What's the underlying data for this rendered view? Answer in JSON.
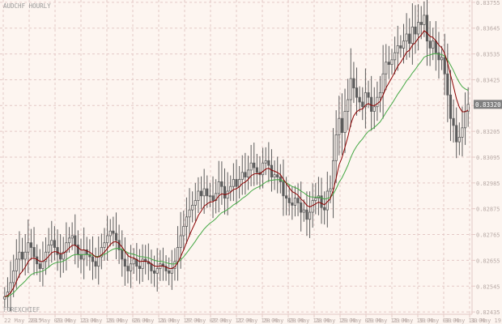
{
  "chart_title": "AUDCHF HOURLY",
  "watermark": "FOREXCHIEF",
  "current_price_label": "0.83320",
  "colors": {
    "background": "#fdf5f0",
    "grid": "#e4c9c6",
    "candle": "#5c5c5c",
    "ma_fast": "#8b0000",
    "ma_slow": "#44a844",
    "axis_text": "#b8aaa6",
    "price_box": "#808080"
  },
  "chart_data": {
    "type": "candlestick",
    "title": "AUDCHF HOURLY",
    "y_ticks": [
      "0.83755",
      "0.83645",
      "0.83535",
      "0.83425",
      "0.83315",
      "0.83205",
      "0.83095",
      "0.82985",
      "0.82875",
      "0.82765",
      "0.82655",
      "0.82545",
      "0.82435"
    ],
    "y_tick_values": [
      0.83755,
      0.83645,
      0.83535,
      0.83425,
      0.83315,
      0.83205,
      0.83095,
      0.82985,
      0.82875,
      0.82765,
      0.82655,
      0.82545,
      0.82435
    ],
    "ylim": [
      0.82425,
      0.83765
    ],
    "x_ticks": [
      "22 May 2015",
      "23 May 03:00",
      "23 May 11:00",
      "23 May 19:00",
      "26 May 03:00",
      "26 May 11:00",
      "26 May 19:00",
      "27 May 03:00",
      "27 May 11:00",
      "27 May 19:00",
      "28 May 03:00",
      "28 May 11:00",
      "28 May 19:00",
      "29 May 03:00",
      "29 May 11:00",
      "29 May 19:00",
      "30 May 03:00",
      "30 May 11:00",
      "30 May 19:00"
    ],
    "x_tick_labels": [
      "22 May 2015",
      "23 May 03:00",
      "23 May 11:00",
      "23 May 19:00",
      "26 May 03:00",
      "26 May 11:00",
      "26 May 19:00",
      "27 May 03:00",
      "27 May 11:00",
      "27 May 19:00",
      "28 May 03:00",
      "28 May 11:00",
      "28 May 19:00",
      "29 May 03:00",
      "29 May 11:00",
      "29 May 19:00",
      "30 May 03:00",
      "30 May 11:00",
      "30 May 19:00"
    ],
    "close": [
      0.825,
      0.8252,
      0.8256,
      0.8261,
      0.8266,
      0.8269,
      0.8266,
      0.8269,
      0.8273,
      0.8271,
      0.8267,
      0.8264,
      0.8262,
      0.8265,
      0.8269,
      0.8272,
      0.8274,
      0.8271,
      0.8268,
      0.8266,
      0.8269,
      0.8273,
      0.8275,
      0.8276,
      0.8272,
      0.8268,
      0.8266,
      0.827,
      0.8268,
      0.8267,
      0.8265,
      0.8263,
      0.8267,
      0.8271,
      0.8273,
      0.8276,
      0.8278,
      0.8277,
      0.8274,
      0.827,
      0.8266,
      0.8263,
      0.8261,
      0.8264,
      0.8266,
      0.8263,
      0.8262,
      0.8266,
      0.8265,
      0.8264,
      0.8261,
      0.826,
      0.8262,
      0.8264,
      0.8263,
      0.8261,
      0.826,
      0.8262,
      0.8265,
      0.8271,
      0.8276,
      0.828,
      0.8284,
      0.8287,
      0.8289,
      0.8291,
      0.8295,
      0.8293,
      0.8296,
      0.8293,
      0.8293,
      0.8291,
      0.8294,
      0.8299,
      0.8297,
      0.8292,
      0.8295,
      0.8297,
      0.83,
      0.8297,
      0.83,
      0.8303,
      0.8301,
      0.8304,
      0.8307,
      0.8305,
      0.8303,
      0.8302,
      0.8307,
      0.8308,
      0.8306,
      0.8301,
      0.8302,
      0.8301,
      0.8299,
      0.8293,
      0.8292,
      0.829,
      0.8289,
      0.8292,
      0.829,
      0.8286,
      0.8287,
      0.8283,
      0.8286,
      0.8291,
      0.8292,
      0.8293,
      0.8288,
      0.8287,
      0.8295,
      0.8296,
      0.8308,
      0.8319,
      0.8326,
      0.832,
      0.8329,
      0.8334,
      0.8343,
      0.8339,
      0.8335,
      0.8333,
      0.8331,
      0.8337,
      0.8335,
      0.8329,
      0.8331,
      0.8335,
      0.8337,
      0.8345,
      0.835,
      0.8349,
      0.8351,
      0.8354,
      0.8357,
      0.8356,
      0.8359,
      0.8362,
      0.8358,
      0.8365,
      0.8362,
      0.8367,
      0.8366,
      0.837,
      0.8359,
      0.8356,
      0.8359,
      0.8354,
      0.8351,
      0.8352,
      0.8345,
      0.8336,
      0.8326,
      0.8323,
      0.8316,
      0.8318,
      0.8322,
      0.8329,
      0.8332
    ],
    "open": [
      0.8249,
      0.825,
      0.8252,
      0.8256,
      0.8261,
      0.8266,
      0.8269,
      0.8266,
      0.8269,
      0.8273,
      0.8271,
      0.8267,
      0.8264,
      0.8262,
      0.8265,
      0.8269,
      0.8272,
      0.8274,
      0.8271,
      0.8268,
      0.8266,
      0.8269,
      0.8273,
      0.8275,
      0.8276,
      0.8272,
      0.8268,
      0.8266,
      0.827,
      0.8268,
      0.8267,
      0.8265,
      0.8263,
      0.8267,
      0.8271,
      0.8273,
      0.8276,
      0.8278,
      0.8277,
      0.8274,
      0.827,
      0.8266,
      0.8263,
      0.8261,
      0.8264,
      0.8266,
      0.8263,
      0.8262,
      0.8266,
      0.8265,
      0.8264,
      0.8261,
      0.826,
      0.8262,
      0.8264,
      0.8263,
      0.8261,
      0.826,
      0.8262,
      0.8265,
      0.8271,
      0.8276,
      0.828,
      0.8284,
      0.8287,
      0.8289,
      0.8291,
      0.8295,
      0.8293,
      0.8296,
      0.8293,
      0.8293,
      0.8291,
      0.8294,
      0.8299,
      0.8297,
      0.8292,
      0.8295,
      0.8297,
      0.83,
      0.8297,
      0.83,
      0.8303,
      0.8301,
      0.8304,
      0.8307,
      0.8305,
      0.8303,
      0.8302,
      0.8307,
      0.8308,
      0.8306,
      0.8301,
      0.8302,
      0.8301,
      0.8299,
      0.8293,
      0.8292,
      0.829,
      0.8289,
      0.8292,
      0.829,
      0.8286,
      0.8287,
      0.8283,
      0.8286,
      0.8291,
      0.8292,
      0.8293,
      0.8288,
      0.8287,
      0.8295,
      0.8296,
      0.8308,
      0.8319,
      0.8326,
      0.832,
      0.8329,
      0.8334,
      0.8343,
      0.8339,
      0.8335,
      0.8333,
      0.8331,
      0.8337,
      0.8335,
      0.8329,
      0.8331,
      0.8335,
      0.8337,
      0.8345,
      0.835,
      0.8349,
      0.8351,
      0.8354,
      0.8357,
      0.8356,
      0.8359,
      0.8362,
      0.8358,
      0.8365,
      0.8362,
      0.8367,
      0.8366,
      0.837,
      0.8359,
      0.8356,
      0.8359,
      0.8354,
      0.8351,
      0.8352,
      0.8345,
      0.8336,
      0.8326,
      0.8323,
      0.8316,
      0.8318,
      0.8322,
      0.8329
    ],
    "ma_fast_label": "",
    "ma_slow_label": ""
  }
}
